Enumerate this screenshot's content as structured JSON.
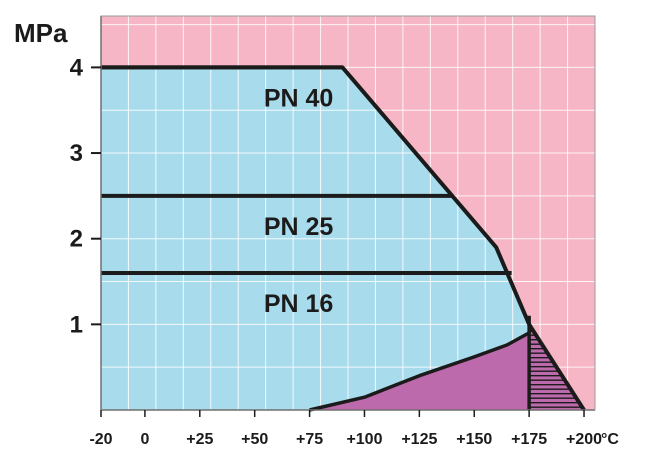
{
  "chart_data": {
    "type": "area",
    "title": "",
    "xlabel": "",
    "ylabel": "",
    "x_unit": "°C",
    "y_unit": "MPa",
    "xlim": [
      -20,
      205
    ],
    "ylim": [
      0,
      4.6
    ],
    "x_ticks": [
      -20,
      0,
      25,
      50,
      75,
      100,
      125,
      150,
      175,
      200
    ],
    "x_tick_labels": [
      "-20",
      "0",
      "+25",
      "+50",
      "+75",
      "+100",
      "+125",
      "+150",
      "+175",
      "+200"
    ],
    "y_ticks": [
      1,
      2,
      3,
      4
    ],
    "y_tick_labels": [
      "1",
      "2",
      "3",
      "4"
    ],
    "grid": true,
    "colors": {
      "background_region": "#f6b6c6",
      "working_region": "#a8dced",
      "restricted_region": "#bc6aab",
      "outline": "#1b1b1b",
      "grid": "#ffffff"
    },
    "envelope": {
      "x": [
        -20,
        90,
        160,
        175,
        200
      ],
      "y": [
        4.0,
        4.0,
        1.9,
        1.0,
        0
      ]
    },
    "series": [
      {
        "name": "PN 40",
        "x": [
          -20,
          90
        ],
        "y": [
          4.0,
          4.0
        ]
      },
      {
        "name": "PN 25",
        "x": [
          -20,
          140
        ],
        "y": [
          2.5,
          2.5
        ]
      },
      {
        "name": "PN 16",
        "x": [
          -20,
          167
        ],
        "y": [
          1.6,
          1.6
        ]
      }
    ],
    "restricted_zone": {
      "x": [
        75,
        100,
        125,
        150,
        165,
        175,
        177,
        200
      ],
      "y": [
        0,
        0.15,
        0.4,
        0.62,
        0.76,
        0.9,
        0.92,
        0
      ]
    },
    "hatched_zone": {
      "x": [
        175,
        177,
        200,
        175
      ],
      "y": [
        0.9,
        0.92,
        0,
        0
      ]
    }
  }
}
